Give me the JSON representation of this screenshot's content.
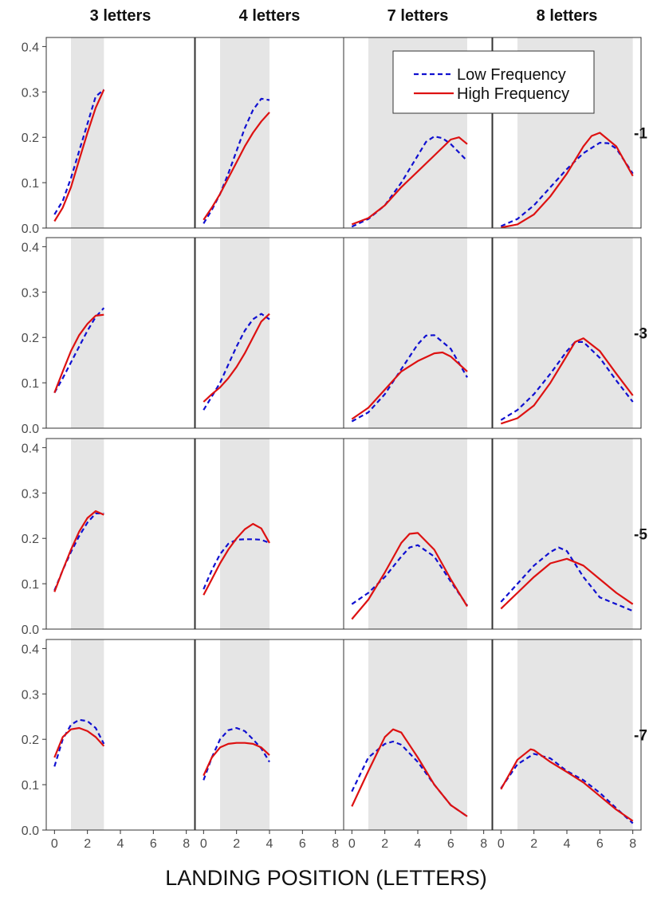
{
  "chart_data": {
    "type": "line",
    "title": "",
    "xlabel": "LANDING POSITION (LETTERS)",
    "ylabel": "",
    "xlim": [
      -0.5,
      8.5
    ],
    "ylim": [
      0,
      0.42
    ],
    "x_ticks": [
      "0",
      "2",
      "4",
      "6",
      "8"
    ],
    "y_ticks": [
      "0.0",
      "0.1",
      "0.2",
      "0.3",
      "0.4"
    ],
    "grid": false,
    "columns": [
      {
        "label": "3 letters",
        "word_length": 3
      },
      {
        "label": "4 letters",
        "word_length": 4
      },
      {
        "label": "7 letters",
        "word_length": 7
      },
      {
        "label": "8 letters",
        "word_length": 8
      }
    ],
    "rows": [
      "-1",
      "-3",
      "-5",
      "-7"
    ],
    "shaded_region": {
      "from": 1,
      "to_word_length": true
    },
    "legend": {
      "placement": "top-right of panel (row -1, column 7 letters)",
      "entries": [
        {
          "name": "Low Frequency",
          "style": "dashed",
          "color": "#1010d0"
        },
        {
          "name": "High Frequency",
          "style": "solid",
          "color": "#dd1111"
        }
      ]
    },
    "panels": [
      {
        "row": "-1",
        "col": "3 letters",
        "series": [
          {
            "name": "Low Frequency",
            "x": [
              0,
              0.5,
              1,
              1.5,
              2,
              2.5,
              3
            ],
            "y": [
              0.03,
              0.06,
              0.11,
              0.17,
              0.23,
              0.29,
              0.305
            ]
          },
          {
            "name": "High Frequency",
            "x": [
              0,
              0.5,
              1,
              1.5,
              2,
              2.5,
              3
            ],
            "y": [
              0.015,
              0.045,
              0.09,
              0.15,
              0.21,
              0.265,
              0.305
            ]
          }
        ]
      },
      {
        "row": "-1",
        "col": "4 letters",
        "series": [
          {
            "name": "Low Frequency",
            "x": [
              0,
              0.5,
              1,
              1.5,
              2,
              2.5,
              3,
              3.5,
              4
            ],
            "y": [
              0.01,
              0.04,
              0.075,
              0.12,
              0.17,
              0.22,
              0.26,
              0.285,
              0.282
            ]
          },
          {
            "name": "High Frequency",
            "x": [
              0,
              0.5,
              1,
              1.5,
              2,
              2.5,
              3,
              3.5,
              4
            ],
            "y": [
              0.018,
              0.045,
              0.075,
              0.11,
              0.145,
              0.18,
              0.21,
              0.235,
              0.255
            ]
          }
        ]
      },
      {
        "row": "-1",
        "col": "7 letters",
        "series": [
          {
            "name": "Low Frequency",
            "x": [
              0,
              1,
              2,
              3,
              4,
              4.5,
              5,
              5.5,
              6,
              7
            ],
            "y": [
              0.003,
              0.02,
              0.05,
              0.1,
              0.16,
              0.19,
              0.202,
              0.198,
              0.185,
              0.148
            ]
          },
          {
            "name": "High Frequency",
            "x": [
              0,
              1,
              2,
              3,
              4,
              5,
              6,
              6.5,
              7
            ],
            "y": [
              0.008,
              0.022,
              0.05,
              0.09,
              0.125,
              0.16,
              0.195,
              0.2,
              0.185
            ]
          }
        ]
      },
      {
        "row": "-1",
        "col": "8 letters",
        "series": [
          {
            "name": "Low Frequency",
            "x": [
              0,
              1,
              2,
              3,
              4,
              5,
              6,
              6.5,
              7,
              8
            ],
            "y": [
              0.004,
              0.02,
              0.05,
              0.09,
              0.13,
              0.165,
              0.188,
              0.187,
              0.175,
              0.12
            ]
          },
          {
            "name": "High Frequency",
            "x": [
              0,
              1,
              2,
              3,
              4,
              5,
              5.5,
              6,
              7,
              8
            ],
            "y": [
              0.001,
              0.008,
              0.03,
              0.07,
              0.12,
              0.18,
              0.203,
              0.21,
              0.18,
              0.115
            ]
          }
        ]
      },
      {
        "row": "-3",
        "col": "3 letters",
        "series": [
          {
            "name": "Low Frequency",
            "x": [
              0,
              0.5,
              1,
              1.5,
              2,
              2.5,
              3
            ],
            "y": [
              0.078,
              0.11,
              0.145,
              0.18,
              0.215,
              0.245,
              0.265
            ]
          },
          {
            "name": "High Frequency",
            "x": [
              0,
              0.5,
              1,
              1.5,
              2,
              2.5,
              3
            ],
            "y": [
              0.078,
              0.125,
              0.17,
              0.205,
              0.23,
              0.248,
              0.25
            ]
          }
        ]
      },
      {
        "row": "-3",
        "col": "4 letters",
        "series": [
          {
            "name": "Low Frequency",
            "x": [
              0,
              0.5,
              1,
              1.5,
              2,
              2.5,
              3,
              3.5,
              4
            ],
            "y": [
              0.04,
              0.07,
              0.1,
              0.14,
              0.18,
              0.215,
              0.24,
              0.252,
              0.24
            ]
          },
          {
            "name": "High Frequency",
            "x": [
              0,
              0.5,
              1,
              1.5,
              2,
              2.5,
              3,
              3.5,
              4
            ],
            "y": [
              0.058,
              0.075,
              0.09,
              0.11,
              0.135,
              0.165,
              0.2,
              0.235,
              0.252
            ]
          }
        ]
      },
      {
        "row": "-3",
        "col": "7 letters",
        "series": [
          {
            "name": "Low Frequency",
            "x": [
              0,
              1,
              2,
              3,
              4,
              4.5,
              5,
              6,
              7
            ],
            "y": [
              0.015,
              0.035,
              0.075,
              0.13,
              0.185,
              0.204,
              0.205,
              0.175,
              0.112
            ]
          },
          {
            "name": "High Frequency",
            "x": [
              0,
              1,
              2,
              3,
              4,
              5,
              5.5,
              6,
              7
            ],
            "y": [
              0.02,
              0.045,
              0.085,
              0.125,
              0.148,
              0.165,
              0.167,
              0.158,
              0.125
            ]
          }
        ]
      },
      {
        "row": "-3",
        "col": "8 letters",
        "series": [
          {
            "name": "Low Frequency",
            "x": [
              0,
              1,
              2,
              3,
              4,
              4.5,
              5,
              6,
              7,
              8
            ],
            "y": [
              0.018,
              0.04,
              0.075,
              0.12,
              0.17,
              0.19,
              0.19,
              0.155,
              0.105,
              0.058
            ]
          },
          {
            "name": "High Frequency",
            "x": [
              0,
              1,
              2,
              3,
              4,
              4.5,
              5,
              6,
              7,
              8
            ],
            "y": [
              0.01,
              0.022,
              0.05,
              0.1,
              0.16,
              0.19,
              0.198,
              0.17,
              0.12,
              0.072
            ]
          }
        ]
      },
      {
        "row": "-5",
        "col": "3 letters",
        "series": [
          {
            "name": "Low Frequency",
            "x": [
              0,
              0.5,
              1,
              1.5,
              2,
              2.5,
              3
            ],
            "y": [
              0.085,
              0.13,
              0.17,
              0.205,
              0.235,
              0.255,
              0.255
            ]
          },
          {
            "name": "High Frequency",
            "x": [
              0,
              0.5,
              1,
              1.5,
              2,
              2.5,
              3
            ],
            "y": [
              0.082,
              0.13,
              0.175,
              0.215,
              0.245,
              0.26,
              0.252
            ]
          }
        ]
      },
      {
        "row": "-5",
        "col": "4 letters",
        "series": [
          {
            "name": "Low Frequency",
            "x": [
              0,
              0.5,
              1,
              1.5,
              2,
              2.5,
              3,
              3.5,
              4
            ],
            "y": [
              0.088,
              0.13,
              0.165,
              0.188,
              0.197,
              0.198,
              0.198,
              0.197,
              0.19
            ]
          },
          {
            "name": "High Frequency",
            "x": [
              0,
              0.5,
              1,
              1.5,
              2,
              2.5,
              3,
              3.5,
              4
            ],
            "y": [
              0.075,
              0.11,
              0.145,
              0.175,
              0.2,
              0.22,
              0.232,
              0.222,
              0.19
            ]
          }
        ]
      },
      {
        "row": "-5",
        "col": "7 letters",
        "series": [
          {
            "name": "Low Frequency",
            "x": [
              0,
              1,
              2,
              3,
              3.5,
              4,
              5,
              6,
              7
            ],
            "y": [
              0.055,
              0.08,
              0.115,
              0.16,
              0.18,
              0.185,
              0.16,
              0.105,
              0.052
            ]
          },
          {
            "name": "High Frequency",
            "x": [
              0,
              1,
              2,
              3,
              3.5,
              4,
              5,
              6,
              7
            ],
            "y": [
              0.022,
              0.065,
              0.125,
              0.19,
              0.21,
              0.212,
              0.175,
              0.11,
              0.05
            ]
          }
        ]
      },
      {
        "row": "-5",
        "col": "8 letters",
        "series": [
          {
            "name": "Low Frequency",
            "x": [
              0,
              1,
              2,
              3,
              3.5,
              4,
              5,
              6,
              7,
              8
            ],
            "y": [
              0.06,
              0.1,
              0.14,
              0.17,
              0.18,
              0.172,
              0.115,
              0.07,
              0.055,
              0.04
            ]
          },
          {
            "name": "High Frequency",
            "x": [
              0,
              1,
              2,
              3,
              4,
              5,
              6,
              7,
              8
            ],
            "y": [
              0.045,
              0.08,
              0.115,
              0.145,
              0.155,
              0.14,
              0.11,
              0.08,
              0.055
            ]
          }
        ]
      },
      {
        "row": "-7",
        "col": "3 letters",
        "series": [
          {
            "name": "Low Frequency",
            "x": [
              0,
              0.5,
              1,
              1.5,
              2,
              2.5,
              3
            ],
            "y": [
              0.14,
              0.2,
              0.232,
              0.243,
              0.24,
              0.225,
              0.19
            ]
          },
          {
            "name": "High Frequency",
            "x": [
              0,
              0.5,
              1,
              1.5,
              2,
              2.5,
              3
            ],
            "y": [
              0.16,
              0.205,
              0.222,
              0.225,
              0.218,
              0.205,
              0.185
            ]
          }
        ]
      },
      {
        "row": "-7",
        "col": "4 letters",
        "series": [
          {
            "name": "Low Frequency",
            "x": [
              0,
              0.5,
              1,
              1.5,
              2,
              2.5,
              3,
              3.5,
              4
            ],
            "y": [
              0.11,
              0.16,
              0.2,
              0.22,
              0.225,
              0.218,
              0.2,
              0.18,
              0.15
            ]
          },
          {
            "name": "High Frequency",
            "x": [
              0,
              0.5,
              1,
              1.5,
              2,
              2.5,
              3,
              3.5,
              4
            ],
            "y": [
              0.12,
              0.16,
              0.182,
              0.19,
              0.192,
              0.192,
              0.19,
              0.182,
              0.165
            ]
          }
        ]
      },
      {
        "row": "-7",
        "col": "7 letters",
        "series": [
          {
            "name": "Low Frequency",
            "x": [
              0,
              1,
              2,
              2.5,
              3,
              4,
              5,
              6,
              7
            ],
            "y": [
              0.085,
              0.16,
              0.19,
              0.195,
              0.188,
              0.15,
              0.1,
              0.055,
              0.03
            ]
          },
          {
            "name": "High Frequency",
            "x": [
              0,
              1,
              2,
              2.5,
              3,
              4,
              5,
              6,
              7
            ],
            "y": [
              0.052,
              0.13,
              0.205,
              0.222,
              0.215,
              0.16,
              0.1,
              0.055,
              0.03
            ]
          }
        ]
      },
      {
        "row": "-7",
        "col": "8 letters",
        "series": [
          {
            "name": "Low Frequency",
            "x": [
              0,
              1,
              2,
              3,
              4,
              5,
              6,
              7,
              8
            ],
            "y": [
              0.092,
              0.145,
              0.168,
              0.158,
              0.13,
              0.11,
              0.082,
              0.048,
              0.015
            ]
          },
          {
            "name": "High Frequency",
            "x": [
              0,
              1,
              1.8,
              2,
              3,
              4,
              5,
              6,
              7,
              8
            ],
            "y": [
              0.09,
              0.155,
              0.178,
              0.176,
              0.15,
              0.128,
              0.105,
              0.075,
              0.045,
              0.02
            ]
          }
        ]
      }
    ]
  }
}
